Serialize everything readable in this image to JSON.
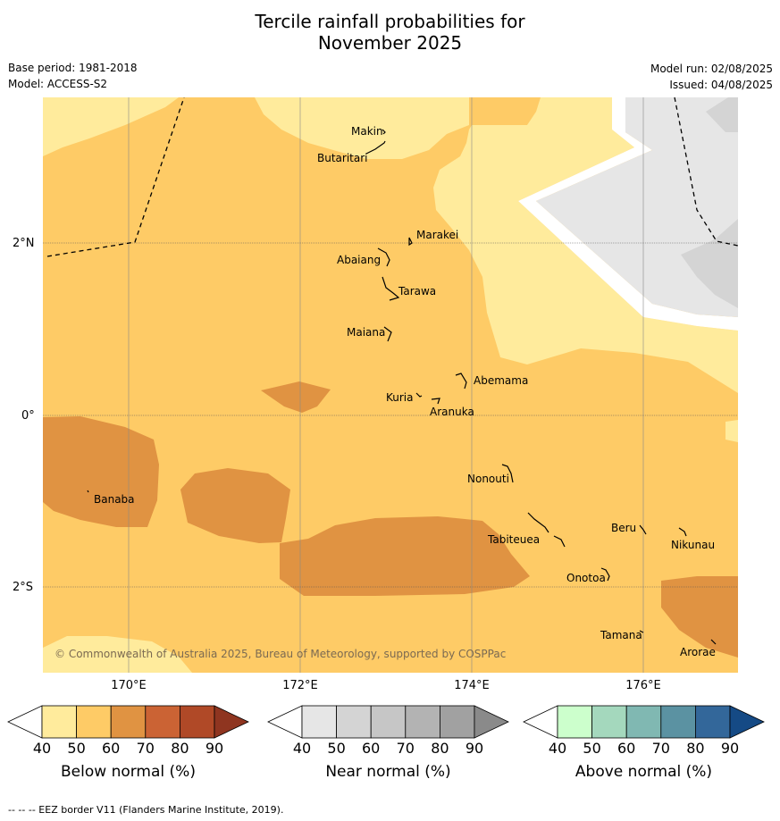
{
  "title_line1": "Tercile rainfall probabilities for",
  "title_line2": "November 2025",
  "base_period": "Base period: 1981-2018",
  "model": "Model: ACCESS-S2",
  "model_run": "Model run: 02/08/2025",
  "issued": "Issued: 04/08/2025",
  "copyright": "© Commonwealth of Australia 2025, Bureau of Meteorology, supported by COSPPac",
  "footer": "--  --  -- EEZ border V11 (Flanders Marine Institute, 2019).",
  "x_ticks": [
    "170°E",
    "172°E",
    "174°E",
    "176°E"
  ],
  "y_ticks": [
    "2°N",
    "0°",
    "2°S"
  ],
  "places": [
    "Makin",
    "Butaritari",
    "Marakei",
    "Abaiang",
    "Tarawa",
    "Maiana",
    "Abemama",
    "Kuria",
    "Aranuka",
    "Banaba",
    "Nonouti",
    "Tabiteuea",
    "Beru",
    "Nikunau",
    "Onotoa",
    "Tamana",
    "Arorae"
  ],
  "colorbars": [
    {
      "label": "Below normal (%)",
      "ticks": [
        "40",
        "50",
        "60",
        "70",
        "80",
        "90"
      ],
      "colors": [
        "#ffffff",
        "#ffeb9c",
        "#fecb66",
        "#e09342",
        "#cb6334",
        "#b04927",
        "#8f3520"
      ]
    },
    {
      "label": "Near normal (%)",
      "ticks": [
        "40",
        "50",
        "60",
        "70",
        "80",
        "90"
      ],
      "colors": [
        "#ffffff",
        "#e6e6e6",
        "#d4d4d4",
        "#c6c6c6",
        "#b3b3b3",
        "#a1a1a1",
        "#8a8a8a"
      ]
    },
    {
      "label": "Above normal (%)",
      "ticks": [
        "40",
        "50",
        "60",
        "70",
        "80",
        "90"
      ],
      "colors": [
        "#ffffff",
        "#ccffcc",
        "#a4d8bd",
        "#80b8b2",
        "#5b92a2",
        "#33679a",
        "#154a85"
      ]
    }
  ],
  "map_colors": {
    "below_50": "#ffeb9c",
    "below_60": "#fecb66",
    "below_70": "#e09342",
    "near_50": "#e6e6e6",
    "near_60": "#d4d4d4"
  }
}
